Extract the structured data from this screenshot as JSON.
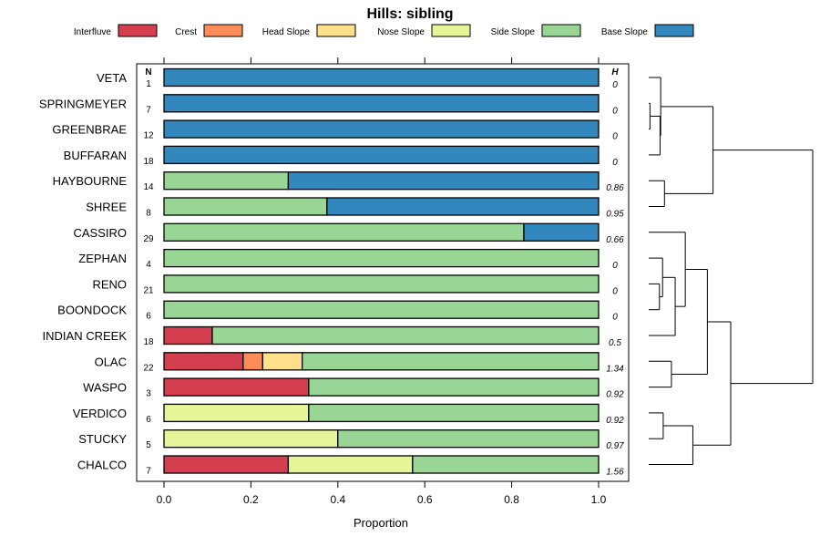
{
  "chart_data": {
    "type": "bar",
    "orientation": "horizontal-stacked",
    "title": "Hills: sibling",
    "xlabel": "Proportion",
    "ylabel": "",
    "xlim": [
      0,
      1
    ],
    "xticks": [
      "0.0",
      "0.2",
      "0.4",
      "0.6",
      "0.8",
      "1.0"
    ],
    "n_header": "N",
    "h_header": "H",
    "legend_position": "top",
    "segments": [
      {
        "name": "Interfluve",
        "color": "#d53e4f"
      },
      {
        "name": "Crest",
        "color": "#fc8d59"
      },
      {
        "name": "Head Slope",
        "color": "#fee08b"
      },
      {
        "name": "Nose Slope",
        "color": "#e6f598"
      },
      {
        "name": "Side Slope",
        "color": "#99d594"
      },
      {
        "name": "Base Slope",
        "color": "#3288bd"
      }
    ],
    "categories": [
      "VETA",
      "SPRINGMEYER",
      "GREENBRAE",
      "BUFFARAN",
      "HAYBOURNE",
      "SHREE",
      "CASSIRO",
      "ZEPHAN",
      "RENO",
      "BOONDOCK",
      "INDIAN CREEK",
      "OLAC",
      "WASPO",
      "VERDICO",
      "STUCKY",
      "CHALCO"
    ],
    "n": [
      "1",
      "7",
      "12",
      "18",
      "14",
      "8",
      "29",
      "4",
      "21",
      "6",
      "18",
      "22",
      "3",
      "6",
      "5",
      "7"
    ],
    "h": [
      "0",
      "0",
      "0",
      "0",
      "0.86",
      "0.95",
      "0.66",
      "0",
      "0",
      "0",
      "0.5",
      "1.34",
      "0.92",
      "0.92",
      "0.97",
      "1.56"
    ],
    "values": [
      [
        0,
        0,
        0,
        0,
        0,
        1
      ],
      [
        0,
        0,
        0,
        0,
        0,
        1
      ],
      [
        0,
        0,
        0,
        0,
        0,
        1
      ],
      [
        0,
        0,
        0,
        0,
        0,
        1
      ],
      [
        0,
        0,
        0,
        0,
        0.286,
        0.714
      ],
      [
        0,
        0,
        0,
        0,
        0.375,
        0.625
      ],
      [
        0,
        0,
        0,
        0,
        0.828,
        0.172
      ],
      [
        0,
        0,
        0,
        0,
        1,
        0
      ],
      [
        0,
        0,
        0,
        0,
        1,
        0
      ],
      [
        0,
        0,
        0,
        0,
        1,
        0
      ],
      [
        0.111,
        0,
        0,
        0,
        0.889,
        0
      ],
      [
        0.182,
        0.045,
        0.091,
        0,
        0.682,
        0
      ],
      [
        0.333,
        0,
        0,
        0,
        0.667,
        0
      ],
      [
        0,
        0,
        0,
        0.333,
        0.667,
        0
      ],
      [
        0,
        0,
        0,
        0.4,
        0.6,
        0
      ],
      [
        0.286,
        0,
        0,
        0.286,
        0.428,
        0
      ]
    ],
    "dendrogram": {
      "leaves": [
        "VETA",
        "SPRINGMEYER",
        "GREENBRAE",
        "BUFFARAN",
        "HAYBOURNE",
        "SHREE",
        "CASSIRO",
        "ZEPHAN",
        "RENO",
        "BOONDOCK",
        "INDIAN CREEK",
        "OLAC",
        "WASPO",
        "VERDICO",
        "STUCKY",
        "CHALCO"
      ],
      "merges": [
        {
          "a": "SPRINGMEYER",
          "b": "GREENBRAE",
          "height": 0.02
        },
        {
          "a": "m0",
          "b": "BUFFARAN",
          "height": 0.18
        },
        {
          "a": "VETA",
          "b": "m1",
          "height": 0.19
        },
        {
          "a": "HAYBOURNE",
          "b": "SHREE",
          "height": 0.25
        },
        {
          "a": "m2",
          "b": "m3",
          "height": 1.02
        },
        {
          "a": "RENO",
          "b": "BOONDOCK",
          "height": 0.17
        },
        {
          "a": "ZEPHAN",
          "b": "m5",
          "height": 0.22
        },
        {
          "a": "m6",
          "b": "INDIAN CREEK",
          "height": 0.42
        },
        {
          "a": "CASSIRO",
          "b": "m7",
          "height": 0.58
        },
        {
          "a": "OLAC",
          "b": "WASPO",
          "height": 0.36
        },
        {
          "a": "m8",
          "b": "m9",
          "height": 0.93
        },
        {
          "a": "VERDICO",
          "b": "STUCKY",
          "height": 0.23
        },
        {
          "a": "m11",
          "b": "CHALCO",
          "height": 0.7
        },
        {
          "a": "m10",
          "b": "m12",
          "height": 1.3
        },
        {
          "a": "m4",
          "b": "m13",
          "height": 2.6
        }
      ],
      "max_height": 2.6
    }
  }
}
